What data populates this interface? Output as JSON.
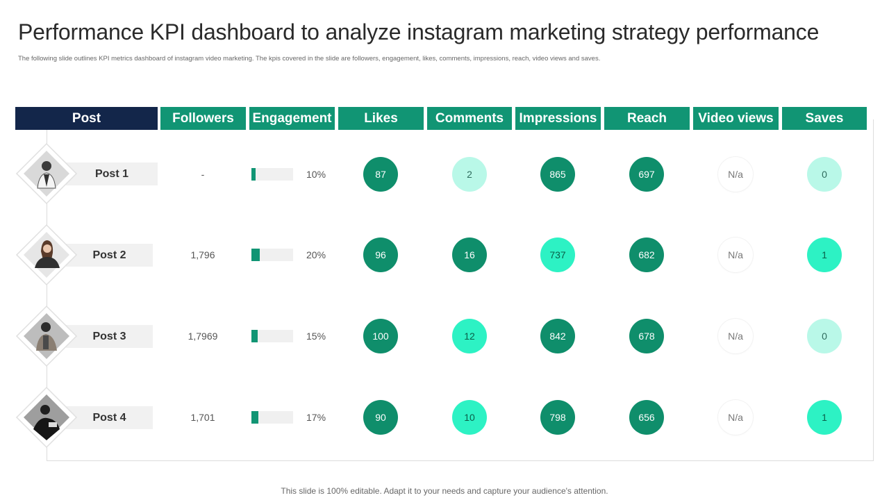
{
  "title": "Performance KPI dashboard to analyze instagram marketing strategy performance",
  "subtitle": "The following slide outlines KPI metrics dashboard of instagram video marketing. The kpis covered in the slide are followers, engagement, likes, comments, impressions, reach, video views and saves.",
  "headers": {
    "post": "Post",
    "followers": "Followers",
    "engagement": "Engagement",
    "likes": "Likes",
    "comments": "Comments",
    "impressions": "Impressions",
    "reach": "Reach",
    "video_views": "Video views",
    "saves": "Saves"
  },
  "colors": {
    "navy": "#13264a",
    "green": "#119574",
    "dark_circle": "#0f8e6b",
    "mid_circle": "#2df2c4",
    "light_circle": "#b9f8e8"
  },
  "rows": [
    {
      "label": "Post 1",
      "photo": "person-photo-icon",
      "followers": "-",
      "engagement_pct": "10%",
      "engagement_value": 10,
      "likes": "87",
      "comments": "2",
      "impressions": "865",
      "reach": "697",
      "video_views": "N/a",
      "saves": "0"
    },
    {
      "label": "Post 2",
      "photo": "person-photo-icon",
      "followers": "1,796",
      "engagement_pct": "20%",
      "engagement_value": 20,
      "likes": "96",
      "comments": "16",
      "impressions": "737",
      "reach": "682",
      "video_views": "N/a",
      "saves": "1"
    },
    {
      "label": "Post 3",
      "photo": "person-photo-icon",
      "followers": "1,7969",
      "engagement_pct": "15%",
      "engagement_value": 15,
      "likes": "100",
      "comments": "12",
      "impressions": "842",
      "reach": "678",
      "video_views": "N/a",
      "saves": "0"
    },
    {
      "label": "Post 4",
      "photo": "person-photo-icon",
      "followers": "1,701",
      "engagement_pct": "17%",
      "engagement_value": 17,
      "likes": "90",
      "comments": "10",
      "impressions": "798",
      "reach": "656",
      "video_views": "N/a",
      "saves": "1"
    }
  ],
  "footer": "This slide is 100% editable. Adapt it to your needs and capture your audience's attention."
}
